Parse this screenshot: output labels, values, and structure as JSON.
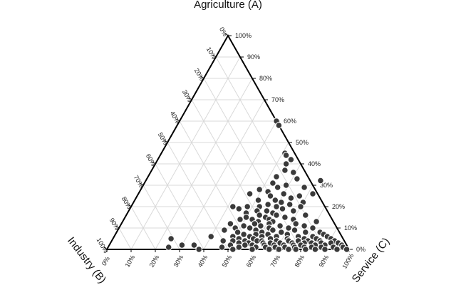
{
  "chart_data": {
    "type": "scatter",
    "subtype": "ternary",
    "axes": {
      "a": {
        "title": "Agriculture (A)",
        "ticks": [
          "0%",
          "10%",
          "20%",
          "30%",
          "40%",
          "50%",
          "60%",
          "70%",
          "80%",
          "90%",
          "100%"
        ]
      },
      "b": {
        "title": "Industry (B)",
        "ticks": [
          "0%",
          "10%",
          "20%",
          "30%",
          "40%",
          "50%",
          "60%",
          "70%",
          "80%",
          "90%",
          "100%"
        ]
      },
      "c": {
        "title": "Service (C)",
        "ticks": [
          "0%",
          "10%",
          "20%",
          "30%",
          "40%",
          "50%",
          "60%",
          "70%",
          "80%",
          "90%",
          "100%"
        ]
      }
    },
    "grid": true,
    "point_color": "#3a3a3a",
    "point_edge_color": "#ffffff",
    "points_ac": [
      [
        0.6,
        0.4
      ],
      [
        0.58,
        0.42
      ],
      [
        0.45,
        0.51
      ],
      [
        0.44,
        0.52
      ],
      [
        0.42,
        0.55
      ],
      [
        0.4,
        0.54
      ],
      [
        0.37,
        0.55
      ],
      [
        0.36,
        0.59
      ],
      [
        0.34,
        0.53
      ],
      [
        0.31,
        0.53
      ],
      [
        0.38,
        0.67
      ],
      [
        0.33,
        0.62
      ],
      [
        0.3,
        0.59
      ],
      [
        0.29,
        0.56
      ],
      [
        0.29,
        0.67
      ],
      [
        0.28,
        0.49
      ],
      [
        0.27,
        0.53
      ],
      [
        0.26,
        0.6
      ],
      [
        0.26,
        0.72
      ],
      [
        0.26,
        0.46
      ],
      [
        0.25,
        0.55
      ],
      [
        0.25,
        0.67
      ],
      [
        0.24,
        0.64
      ],
      [
        0.23,
        0.51
      ],
      [
        0.23,
        0.58
      ],
      [
        0.22,
        0.61
      ],
      [
        0.22,
        0.7
      ],
      [
        0.21,
        0.56
      ],
      [
        0.21,
        0.65
      ],
      [
        0.2,
        0.53
      ],
      [
        0.2,
        0.6
      ],
      [
        0.2,
        0.7
      ],
      [
        0.2,
        0.42
      ],
      [
        0.2,
        0.48
      ],
      [
        0.19,
        0.45
      ],
      [
        0.19,
        0.63
      ],
      [
        0.18,
        0.57
      ],
      [
        0.18,
        0.53
      ],
      [
        0.18,
        0.68
      ],
      [
        0.17,
        0.6
      ],
      [
        0.17,
        0.49
      ],
      [
        0.16,
        0.55
      ],
      [
        0.16,
        0.62
      ],
      [
        0.16,
        0.74
      ],
      [
        0.15,
        0.58
      ],
      [
        0.15,
        0.5
      ],
      [
        0.15,
        0.66
      ],
      [
        0.14,
        0.48
      ],
      [
        0.14,
        0.53
      ],
      [
        0.14,
        0.6
      ],
      [
        0.14,
        0.7
      ],
      [
        0.13,
        0.56
      ],
      [
        0.13,
        0.62
      ],
      [
        0.13,
        0.8
      ],
      [
        0.12,
        0.45
      ],
      [
        0.12,
        0.55
      ],
      [
        0.12,
        0.61
      ],
      [
        0.12,
        0.72
      ],
      [
        0.11,
        0.51
      ],
      [
        0.11,
        0.58
      ],
      [
        0.11,
        0.66
      ],
      [
        0.11,
        0.76
      ],
      [
        0.1,
        0.48
      ],
      [
        0.1,
        0.54
      ],
      [
        0.1,
        0.62
      ],
      [
        0.1,
        0.7
      ],
      [
        0.1,
        0.8
      ],
      [
        0.09,
        0.57
      ],
      [
        0.09,
        0.64
      ],
      [
        0.09,
        0.73
      ],
      [
        0.09,
        0.44
      ],
      [
        0.08,
        0.5
      ],
      [
        0.08,
        0.6
      ],
      [
        0.08,
        0.68
      ],
      [
        0.08,
        0.78
      ],
      [
        0.08,
        0.84
      ],
      [
        0.07,
        0.53
      ],
      [
        0.07,
        0.58
      ],
      [
        0.07,
        0.63
      ],
      [
        0.07,
        0.71
      ],
      [
        0.07,
        0.86
      ],
      [
        0.06,
        0.49
      ],
      [
        0.06,
        0.56
      ],
      [
        0.06,
        0.61
      ],
      [
        0.06,
        0.67
      ],
      [
        0.06,
        0.76
      ],
      [
        0.06,
        0.82
      ],
      [
        0.06,
        0.88
      ],
      [
        0.06,
        0.4
      ],
      [
        0.05,
        0.52
      ],
      [
        0.05,
        0.58
      ],
      [
        0.05,
        0.65
      ],
      [
        0.05,
        0.72
      ],
      [
        0.05,
        0.79
      ],
      [
        0.05,
        0.84
      ],
      [
        0.05,
        0.9
      ],
      [
        0.05,
        0.24
      ],
      [
        0.04,
        0.5
      ],
      [
        0.04,
        0.55
      ],
      [
        0.04,
        0.6
      ],
      [
        0.04,
        0.62
      ],
      [
        0.04,
        0.68
      ],
      [
        0.04,
        0.73
      ],
      [
        0.04,
        0.77
      ],
      [
        0.04,
        0.81
      ],
      [
        0.04,
        0.86
      ],
      [
        0.04,
        0.92
      ],
      [
        0.04,
        0.46
      ],
      [
        0.03,
        0.53
      ],
      [
        0.03,
        0.57
      ],
      [
        0.03,
        0.63
      ],
      [
        0.03,
        0.66
      ],
      [
        0.03,
        0.7
      ],
      [
        0.03,
        0.75
      ],
      [
        0.03,
        0.8
      ],
      [
        0.03,
        0.83
      ],
      [
        0.03,
        0.87
      ],
      [
        0.03,
        0.91
      ],
      [
        0.03,
        0.94
      ],
      [
        0.02,
        0.5
      ],
      [
        0.02,
        0.56
      ],
      [
        0.02,
        0.59
      ],
      [
        0.02,
        0.64
      ],
      [
        0.02,
        0.68
      ],
      [
        0.02,
        0.72
      ],
      [
        0.02,
        0.76
      ],
      [
        0.02,
        0.79
      ],
      [
        0.02,
        0.85
      ],
      [
        0.02,
        0.89
      ],
      [
        0.02,
        0.96
      ],
      [
        0.02,
        0.3
      ],
      [
        0.02,
        0.35
      ],
      [
        0.01,
        0.47
      ],
      [
        0.01,
        0.54
      ],
      [
        0.01,
        0.61
      ],
      [
        0.01,
        0.65
      ],
      [
        0.01,
        0.69
      ],
      [
        0.01,
        0.73
      ],
      [
        0.01,
        0.77
      ],
      [
        0.01,
        0.81
      ],
      [
        0.01,
        0.84
      ],
      [
        0.01,
        0.88
      ],
      [
        0.01,
        0.93
      ],
      [
        0.01,
        0.97
      ],
      [
        0.01,
        0.25
      ],
      [
        0.0,
        0.38
      ],
      [
        0.0,
        0.52
      ],
      [
        0.0,
        0.6
      ],
      [
        0.0,
        0.67
      ],
      [
        0.0,
        0.71
      ],
      [
        0.0,
        0.75
      ],
      [
        0.0,
        0.78
      ],
      [
        0.0,
        0.82
      ],
      [
        0.0,
        0.86
      ],
      [
        0.0,
        0.9
      ],
      [
        0.0,
        0.95
      ],
      [
        0.0,
        0.99
      ]
    ]
  }
}
